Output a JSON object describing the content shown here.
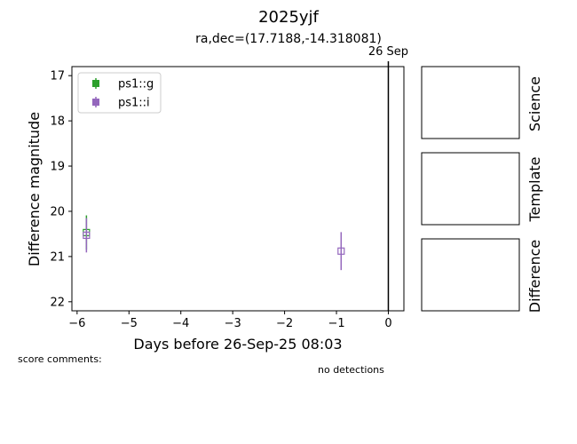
{
  "title": "2025yjf",
  "subtitle": "ra,dec=(17.7188,-14.318081)",
  "chart_data": {
    "type": "scatter",
    "title": "2025yjf",
    "subtitle": "ra,dec=(17.7188,-14.318081)",
    "xlabel": "Days before 26-Sep-25 08:03",
    "ylabel": "Difference magnitude",
    "xlim": [
      -6.1,
      0.3
    ],
    "ylim": [
      22.2,
      16.8
    ],
    "y_inverted": true,
    "x_ticks": [
      -6,
      -5,
      -4,
      -3,
      -2,
      -1,
      0
    ],
    "x_tick_labels": [
      "−6",
      "−5",
      "−4",
      "−3",
      "−2",
      "−1",
      "0"
    ],
    "y_ticks": [
      17,
      18,
      19,
      20,
      21,
      22
    ],
    "y_tick_labels": [
      "17",
      "18",
      "19",
      "20",
      "21",
      "22"
    ],
    "grid": false,
    "legend_position": "top-left",
    "vline": {
      "x": 0,
      "label": "26 Sep"
    },
    "series": [
      {
        "name": "ps1::g",
        "color": "#2ca02c",
        "marker": "square-open",
        "points": [
          {
            "x": -5.82,
            "y": 20.47,
            "err": 0.38
          }
        ]
      },
      {
        "name": "ps1::i",
        "color": "#9467bd",
        "marker": "square-open",
        "points": [
          {
            "x": -5.82,
            "y": 20.53,
            "err": 0.38
          },
          {
            "x": -0.91,
            "y": 20.88,
            "err": 0.42
          }
        ]
      }
    ]
  },
  "notes": {
    "score_comments": "score comments:",
    "detections": "no detections"
  },
  "side_panels": [
    "Science",
    "Template",
    "Difference"
  ]
}
